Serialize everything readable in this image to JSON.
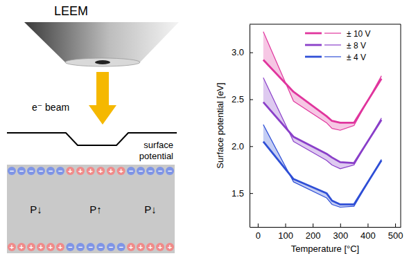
{
  "chart_data": {
    "type": "line",
    "x_label": "Temperature [°C]",
    "y_label": "Surface potential [eV]",
    "x": [
      20,
      130,
      250,
      270,
      300,
      350,
      450
    ],
    "series": [
      {
        "name": "± 10 V",
        "color": "#e0359d",
        "line_style": "thick",
        "values": [
          2.92,
          2.58,
          2.32,
          2.27,
          2.25,
          2.25,
          2.72
        ]
      },
      {
        "name": "± 10 V",
        "color": "#e0359d",
        "line_style": "thin",
        "values": [
          3.22,
          2.48,
          2.25,
          2.19,
          2.17,
          2.22,
          2.75
        ]
      },
      {
        "name": "± 8 V",
        "color": "#8a3fc9",
        "line_style": "thick",
        "values": [
          2.47,
          2.1,
          1.92,
          1.88,
          1.83,
          1.82,
          2.28
        ]
      },
      {
        "name": "± 8 V",
        "color": "#8a3fc9",
        "line_style": "thin",
        "values": [
          2.73,
          2.05,
          1.85,
          1.8,
          1.76,
          1.8,
          2.3
        ]
      },
      {
        "name": "± 4 V",
        "color": "#2f4fd6",
        "line_style": "thick",
        "values": [
          2.05,
          1.65,
          1.5,
          1.42,
          1.38,
          1.38,
          1.85
        ]
      },
      {
        "name": "± 4 V",
        "color": "#2f4fd6",
        "line_style": "thin",
        "values": [
          2.23,
          1.62,
          1.45,
          1.38,
          1.35,
          1.36,
          1.86
        ]
      }
    ],
    "xlim": [
      -30,
      520
    ],
    "xticks": [
      0,
      100,
      200,
      300,
      400,
      500
    ],
    "ylim": [
      1.14,
      3.3
    ],
    "yticks": [
      1.5,
      {
        "value": 2,
        "label": "2.0"
      },
      2.5,
      {
        "value": 3,
        "label": "3.0"
      }
    ],
    "legend": "top-right",
    "grid": false
  },
  "diagram": {
    "instrument": "LEEM",
    "beam_label": "e⁻ beam",
    "potential_label": [
      "surface",
      "potential"
    ],
    "domains": [
      {
        "label": "P↓",
        "top": "−",
        "bottom": "+"
      },
      {
        "label": "P↑",
        "top": "+",
        "bottom": "−"
      },
      {
        "label": "P↓",
        "top": "−",
        "bottom": "+"
      }
    ]
  }
}
